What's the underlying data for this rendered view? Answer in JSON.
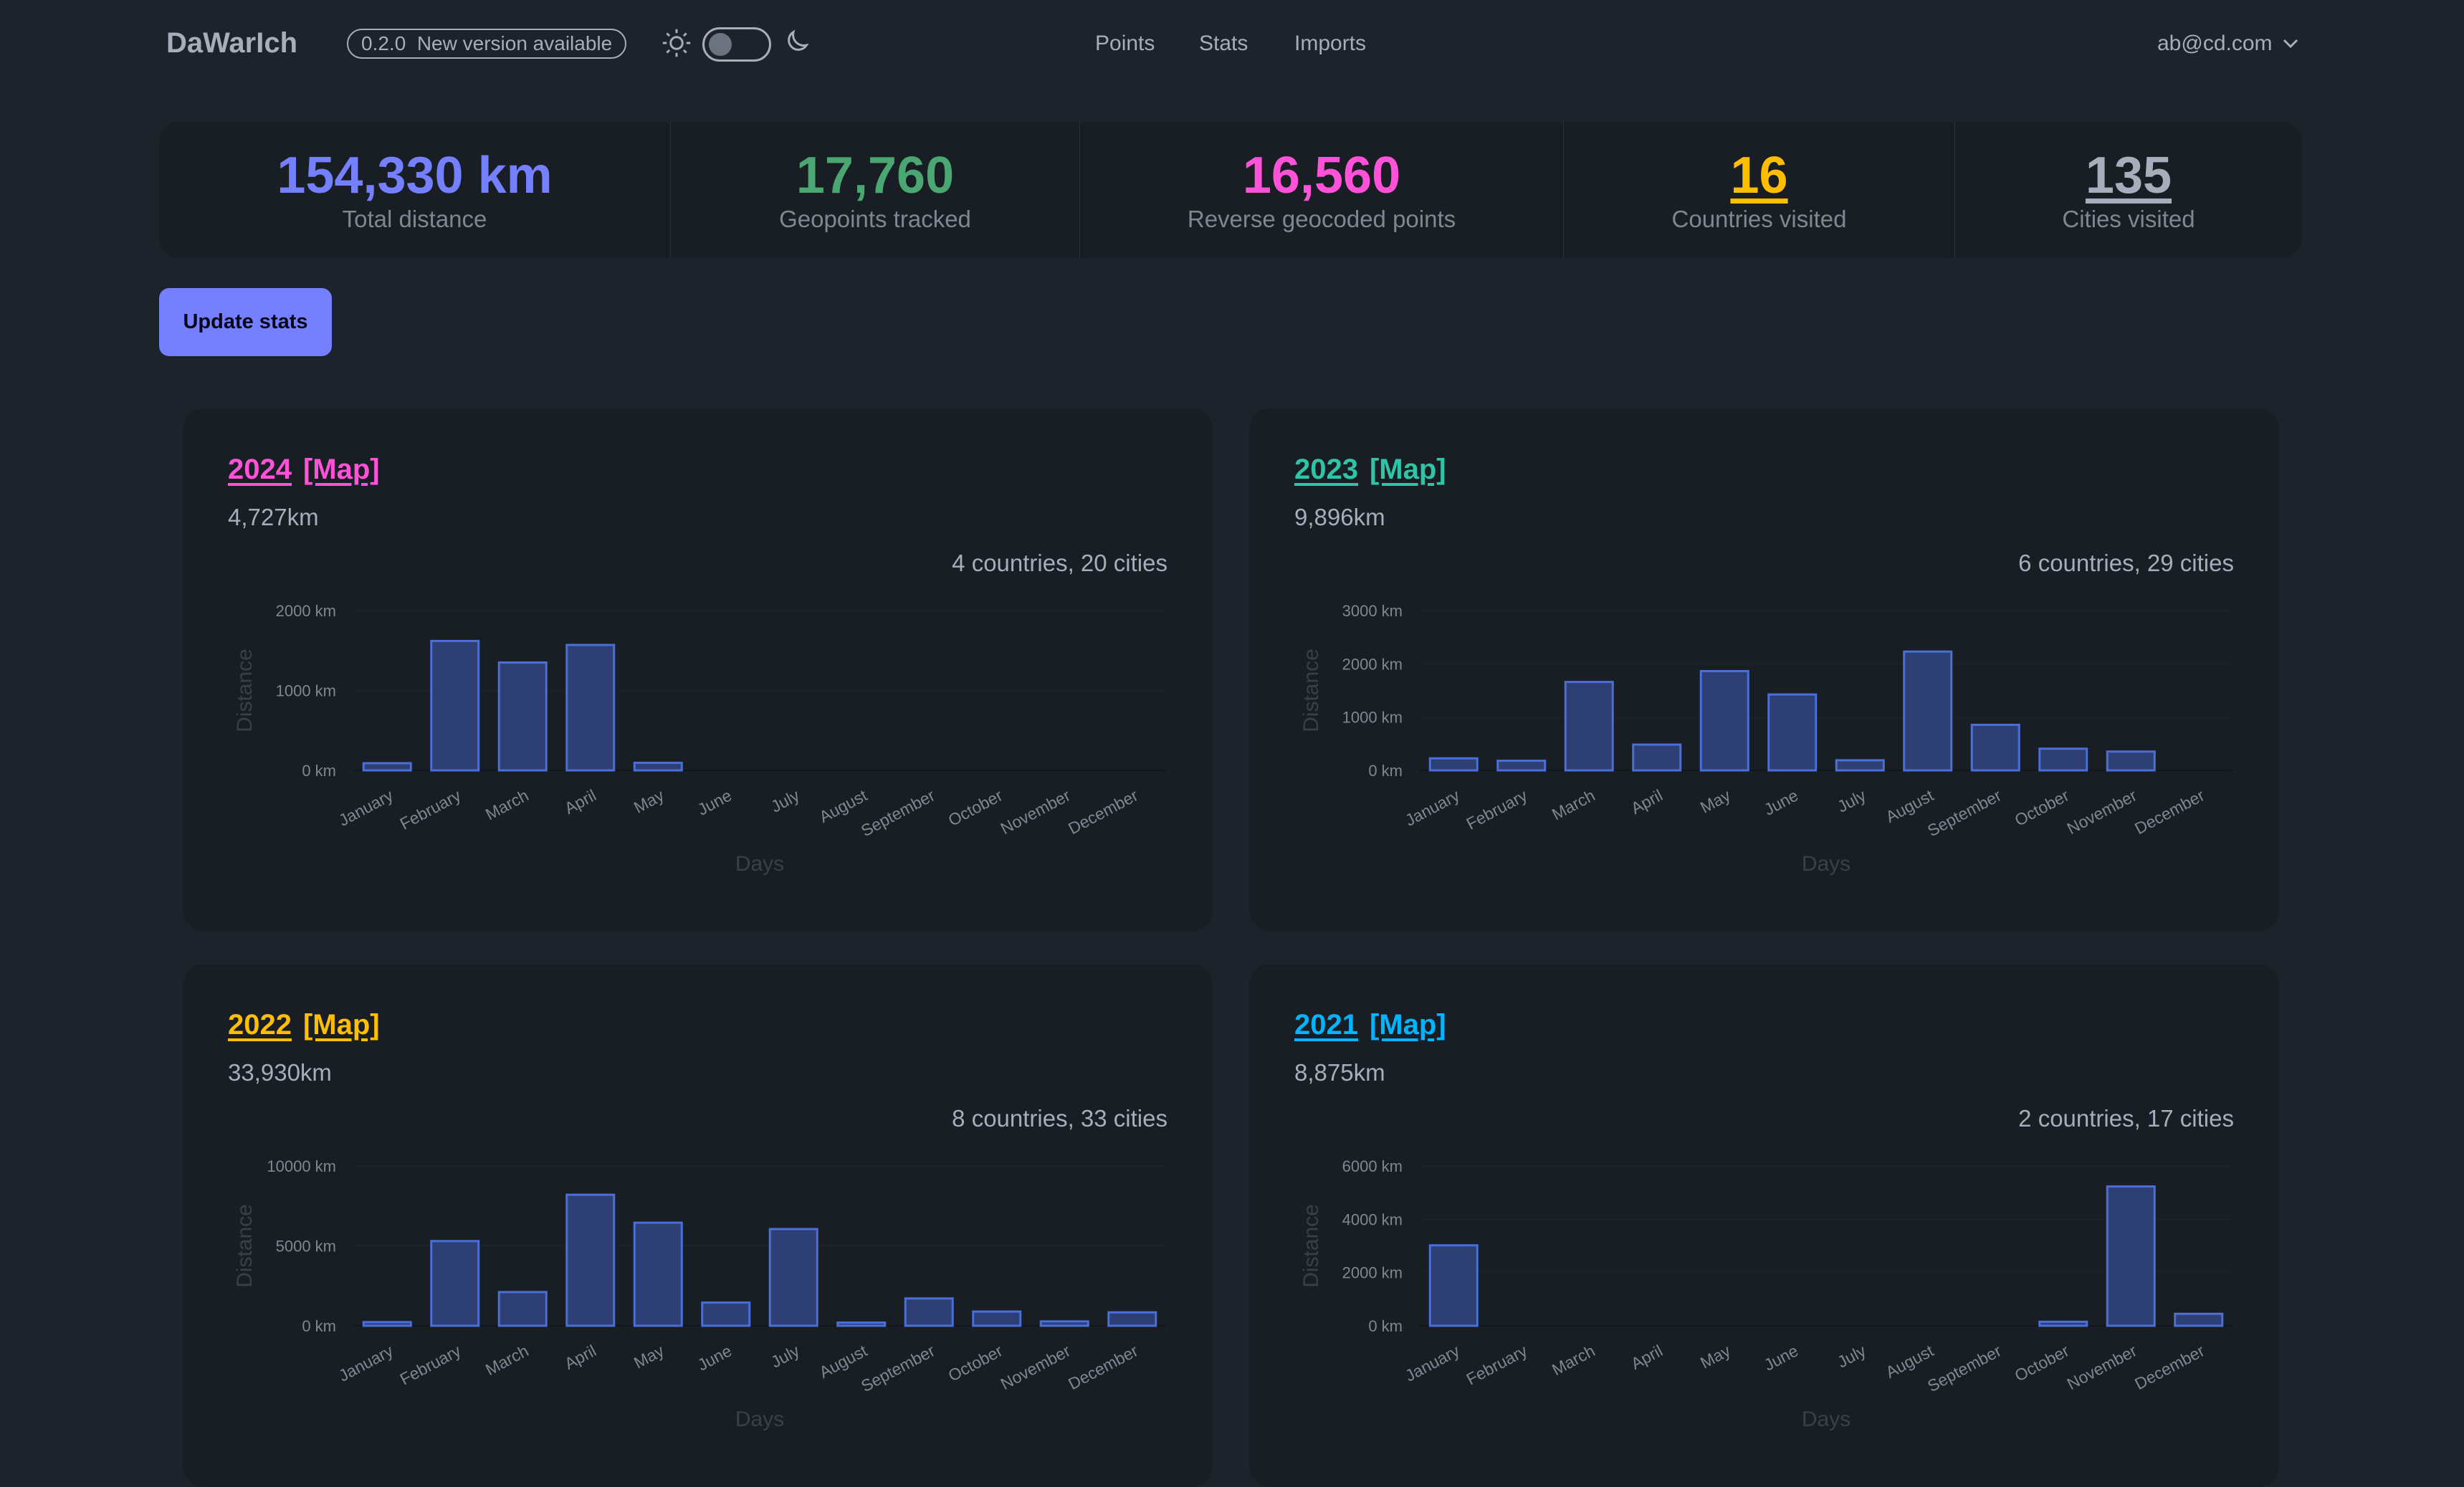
{
  "header": {
    "logo": "DaWarIch",
    "version_badge": "0.2.0  New version available",
    "nav": [
      "Points",
      "Stats",
      "Imports"
    ],
    "user_email": "ab@cd.com",
    "theme_toggle_dark": false
  },
  "stats": [
    {
      "value": "154,330 km",
      "label": "Total distance",
      "color": "#7480ff",
      "link": false
    },
    {
      "value": "17,760",
      "label": "Geopoints tracked",
      "color": "#4aa772",
      "link": false
    },
    {
      "value": "16,560",
      "label": "Reverse geocoded points",
      "color": "#ff52d9",
      "link": false
    },
    {
      "value": "16",
      "label": "Countries visited",
      "color": "#ffbe00",
      "link": true
    },
    {
      "value": "135",
      "label": "Cities visited",
      "color": "#a6adbb",
      "link": true
    }
  ],
  "update_button": "Update stats",
  "colors": {
    "bar_fill": "#2e3f74",
    "bar_border": "#4b6fd8",
    "axis_text": "#7f8792",
    "axis_title": "#3a4048"
  },
  "cards": [
    {
      "year": "2024",
      "map": "[Map]",
      "color": "#ff52d9",
      "distance": "4,727km",
      "summary": "4 countries, 20 cities"
    },
    {
      "year": "2023",
      "map": "[Map]",
      "color": "#2ec4a6",
      "distance": "9,896km",
      "summary": "6 countries, 29 cities"
    },
    {
      "year": "2022",
      "map": "[Map]",
      "color": "#ffbe00",
      "distance": "33,930km",
      "summary": "8 countries, 33 cities"
    },
    {
      "year": "2021",
      "map": "[Map]",
      "color": "#00b5ff",
      "distance": "8,875km",
      "summary": "2 countries, 17 cities"
    }
  ],
  "chart_data": [
    {
      "type": "bar",
      "xlabel": "Days",
      "ylabel": "Distance",
      "categories": [
        "January",
        "February",
        "March",
        "April",
        "May",
        "June",
        "July",
        "August",
        "September",
        "October",
        "November",
        "December"
      ],
      "values": [
        90,
        1620,
        1350,
        1570,
        95,
        0,
        0,
        0,
        0,
        0,
        0,
        0
      ],
      "yticks": [
        0,
        1000,
        2000
      ],
      "ytick_labels": [
        "0 km",
        "1000 km",
        "2000 km"
      ],
      "ylim": [
        0,
        2000
      ]
    },
    {
      "type": "bar",
      "xlabel": "Days",
      "ylabel": "Distance",
      "categories": [
        "January",
        "February",
        "March",
        "April",
        "May",
        "June",
        "July",
        "August",
        "September",
        "October",
        "November",
        "December"
      ],
      "values": [
        226,
        181,
        1660,
        484,
        1864,
        1425,
        190,
        2230,
        855,
        407,
        353,
        0
      ],
      "yticks": [
        0,
        1000,
        2000,
        3000
      ],
      "ytick_labels": [
        "0 km",
        "1000 km",
        "2000 km",
        "3000 km"
      ],
      "ylim": [
        0,
        3000
      ]
    },
    {
      "type": "bar",
      "xlabel": "Days",
      "ylabel": "Distance",
      "categories": [
        "January",
        "February",
        "March",
        "April",
        "May",
        "June",
        "July",
        "August",
        "September",
        "October",
        "November",
        "December"
      ],
      "values": [
        230,
        5300,
        2110,
        8200,
        6450,
        1450,
        6050,
        200,
        1710,
        890,
        275,
        840
      ],
      "yticks": [
        0,
        5000,
        10000
      ],
      "ytick_labels": [
        "0 km",
        "5000 km",
        "10000 km"
      ],
      "ylim": [
        0,
        10000
      ]
    },
    {
      "type": "bar",
      "xlabel": "Days",
      "ylabel": "Distance",
      "categories": [
        "January",
        "February",
        "March",
        "April",
        "May",
        "June",
        "July",
        "August",
        "September",
        "October",
        "November",
        "December"
      ],
      "values": [
        3020,
        0,
        0,
        0,
        0,
        0,
        0,
        0,
        0,
        150,
        5230,
        450
      ],
      "yticks": [
        0,
        2000,
        4000,
        6000
      ],
      "ytick_labels": [
        "0 km",
        "2000 km",
        "4000 km",
        "6000 km"
      ],
      "ylim": [
        0,
        6000
      ]
    }
  ]
}
